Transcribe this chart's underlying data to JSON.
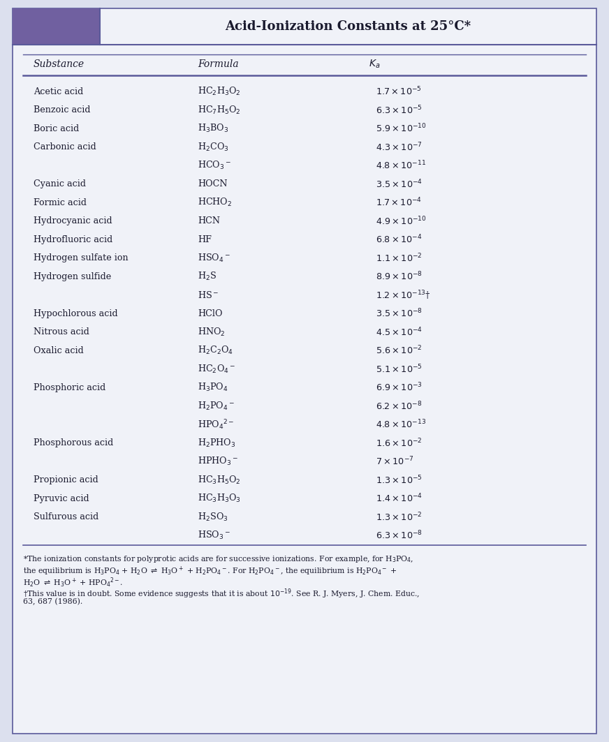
{
  "title": "Acid-Ionization Constants at 25°C*",
  "col_headers": [
    "Substance",
    "Formula",
    "$K_a$"
  ],
  "rows": [
    [
      "Acetic acid",
      "HC$_2$H$_3$O$_2$",
      "$1.7 \\times 10^{-5}$"
    ],
    [
      "Benzoic acid",
      "HC$_7$H$_5$O$_2$",
      "$6.3 \\times 10^{-5}$"
    ],
    [
      "Boric acid",
      "H$_3$BO$_3$",
      "$5.9 \\times 10^{-10}$"
    ],
    [
      "Carbonic acid",
      "H$_2$CO$_3$",
      "$4.3 \\times 10^{-7}$"
    ],
    [
      "",
      "HCO$_3$$^-$",
      "$4.8 \\times 10^{-11}$"
    ],
    [
      "Cyanic acid",
      "HOCN",
      "$3.5 \\times 10^{-4}$"
    ],
    [
      "Formic acid",
      "HCHO$_2$",
      "$1.7 \\times 10^{-4}$"
    ],
    [
      "Hydrocyanic acid",
      "HCN",
      "$4.9 \\times 10^{-10}$"
    ],
    [
      "Hydrofluoric acid",
      "HF",
      "$6.8 \\times 10^{-4}$"
    ],
    [
      "Hydrogen sulfate ion",
      "HSO$_4$$^-$",
      "$1.1 \\times 10^{-2}$"
    ],
    [
      "Hydrogen sulfide",
      "H$_2$S",
      "$8.9 \\times 10^{-8}$"
    ],
    [
      "",
      "HS$^-$",
      "$1.2 \\times 10^{-13}$†"
    ],
    [
      "Hypochlorous acid",
      "HClO",
      "$3.5 \\times 10^{-8}$"
    ],
    [
      "Nitrous acid",
      "HNO$_2$",
      "$4.5 \\times 10^{-4}$"
    ],
    [
      "Oxalic acid",
      "H$_2$C$_2$O$_4$",
      "$5.6 \\times 10^{-2}$"
    ],
    [
      "",
      "HC$_2$O$_4$$^-$",
      "$5.1 \\times 10^{-5}$"
    ],
    [
      "Phosphoric acid",
      "H$_3$PO$_4$",
      "$6.9 \\times 10^{-3}$"
    ],
    [
      "",
      "H$_2$PO$_4$$^-$",
      "$6.2 \\times 10^{-8}$"
    ],
    [
      "",
      "HPO$_4$$^{2-}$",
      "$4.8 \\times 10^{-13}$"
    ],
    [
      "Phosphorous acid",
      "H$_2$PHO$_3$",
      "$1.6 \\times 10^{-2}$"
    ],
    [
      "",
      "HPHO$_3$$^-$",
      "$7 \\times 10^{-7}$"
    ],
    [
      "Propionic acid",
      "HC$_3$H$_5$O$_2$",
      "$1.3 \\times 10^{-5}$"
    ],
    [
      "Pyruvic acid",
      "HC$_3$H$_3$O$_3$",
      "$1.4 \\times 10^{-4}$"
    ],
    [
      "Sulfurous acid",
      "H$_2$SO$_3$",
      "$1.3 \\times 10^{-2}$"
    ],
    [
      "",
      "HSO$_3$$^-$",
      "$6.3 \\times 10^{-8}$"
    ]
  ],
  "footnotes": [
    "*The ionization constants for polyprotic acids are for successive ionizations. For example, for H$_3$PO$_4$,",
    "the equilibrium is H$_3$PO$_4$ + H$_2$O $\\rightleftharpoons$ H$_3$O$^+$ + H$_2$PO$_4$$^-$. For H$_2$PO$_4$$^-$, the equilibrium is H$_2$PO$_4$$^-$ +",
    "H$_2$O $\\rightleftharpoons$ H$_3$O$^+$ + HPO$_4$$^{2-}$.",
    "†This value is in doubt. Some evidence suggests that it is about $10^{-19}$. See R. J. Myers, J. Chem. Educ.,",
    "63, 687 (1986)."
  ],
  "bg_color": "#dce0ee",
  "header_bg": "#7060a0",
  "text_color": "#1a1a2e",
  "border_color": "#5a5a9a",
  "white_bg": "#f0f2f8",
  "figsize": [
    8.72,
    10.63
  ],
  "dpi": 100
}
